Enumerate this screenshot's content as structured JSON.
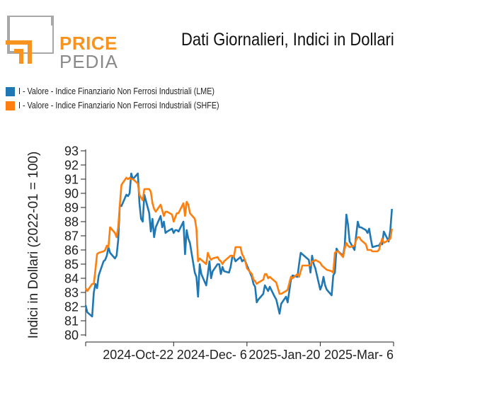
{
  "logo": {
    "word1": "PRICE",
    "word2": "PEDIA"
  },
  "colors": {
    "lme": "#1f77b4",
    "shfe": "#ff7f0e",
    "logo_orange": "#f7931e",
    "logo_grey": "#9a9a9a"
  },
  "chart_data": {
    "type": "line",
    "title": "Dati Giornalieri, Indici in Dollari",
    "ylabel": "Indici in Dollari (2022-01 = 100)",
    "xlabel": "",
    "ylim": [
      80,
      93
    ],
    "yticks": [
      80,
      81,
      82,
      83,
      84,
      85,
      86,
      87,
      88,
      89,
      90,
      91,
      92,
      93
    ],
    "xlim": [
      "2024-08-29",
      "2025-03-06"
    ],
    "xticks": [
      {
        "date": "2024-10-22",
        "label": "2024-Oct-22"
      },
      {
        "date": "2024-12-06",
        "label": "2024-Dec- 6"
      },
      {
        "date": "2025-01-20",
        "label": "2025-Jan-20"
      },
      {
        "date": "2025-03-06",
        "label": "2025-Mar- 6"
      }
    ],
    "legend_position": "top-left",
    "grid": false,
    "series": [
      {
        "name": "I - Valore - Indice Finanziario Non Ferrosi Industriali (LME)",
        "color": "#1f77b4",
        "points": [
          [
            "2024-08-29",
            82.1
          ],
          [
            "2024-08-30",
            81.6
          ],
          [
            "2024-09-02",
            81.3
          ],
          [
            "2024-09-03",
            83.0
          ],
          [
            "2024-09-04",
            83.6
          ],
          [
            "2024-09-05",
            83.3
          ],
          [
            "2024-09-06",
            84.2
          ],
          [
            "2024-09-09",
            85.2
          ],
          [
            "2024-09-10",
            85.3
          ],
          [
            "2024-09-11",
            85.6
          ],
          [
            "2024-09-12",
            86.2
          ],
          [
            "2024-09-13",
            85.8
          ],
          [
            "2024-09-16",
            85.4
          ],
          [
            "2024-09-17",
            85.6
          ],
          [
            "2024-09-18",
            86.7
          ],
          [
            "2024-09-19",
            89.2
          ],
          [
            "2024-09-20",
            89.1
          ],
          [
            "2024-09-23",
            89.9
          ],
          [
            "2024-09-24",
            89.8
          ],
          [
            "2024-09-25",
            90.0
          ],
          [
            "2024-09-26",
            91.4
          ],
          [
            "2024-09-27",
            91.0
          ],
          [
            "2024-09-30",
            91.4
          ],
          [
            "2024-10-01",
            89.3
          ],
          [
            "2024-10-02",
            88.2
          ],
          [
            "2024-10-03",
            88.0
          ],
          [
            "2024-10-04",
            89.9
          ],
          [
            "2024-10-07",
            88.6
          ],
          [
            "2024-10-08",
            87.3
          ],
          [
            "2024-10-09",
            88.2
          ],
          [
            "2024-10-10",
            86.9
          ],
          [
            "2024-10-11",
            87.6
          ],
          [
            "2024-10-14",
            88.4
          ],
          [
            "2024-10-15",
            87.6
          ],
          [
            "2024-10-16",
            88.0
          ],
          [
            "2024-10-17",
            87.2
          ],
          [
            "2024-10-18",
            87.3
          ],
          [
            "2024-10-21",
            87.5
          ],
          [
            "2024-10-22",
            87.2
          ],
          [
            "2024-10-23",
            87.4
          ],
          [
            "2024-10-24",
            87.4
          ],
          [
            "2024-10-25",
            87.3
          ],
          [
            "2024-10-28",
            88.0
          ],
          [
            "2024-10-29",
            85.7
          ],
          [
            "2024-10-30",
            87.4
          ],
          [
            "2024-10-31",
            86.8
          ],
          [
            "2024-11-01",
            86.5
          ],
          [
            "2024-11-04",
            84.4
          ],
          [
            "2024-11-05",
            84.1
          ],
          [
            "2024-11-06",
            82.7
          ],
          [
            "2024-11-07",
            85.0
          ],
          [
            "2024-11-08",
            84.3
          ],
          [
            "2024-11-11",
            83.5
          ],
          [
            "2024-11-12",
            84.3
          ],
          [
            "2024-11-13",
            85.2
          ],
          [
            "2024-11-14",
            84.0
          ],
          [
            "2024-11-15",
            84.5
          ],
          [
            "2024-11-18",
            85.0
          ],
          [
            "2024-11-19",
            85.0
          ],
          [
            "2024-11-20",
            84.3
          ],
          [
            "2024-11-21",
            84.8
          ],
          [
            "2024-11-22",
            84.5
          ],
          [
            "2024-11-25",
            84.4
          ],
          [
            "2024-11-26",
            84.8
          ],
          [
            "2024-11-27",
            85.5
          ],
          [
            "2024-11-28",
            85.5
          ],
          [
            "2024-11-29",
            85.2
          ],
          [
            "2024-12-02",
            85.5
          ],
          [
            "2024-12-03",
            85.2
          ],
          [
            "2024-12-04",
            85.3
          ],
          [
            "2024-12-05",
            85.2
          ],
          [
            "2024-12-06",
            84.9
          ],
          [
            "2024-12-09",
            84.1
          ],
          [
            "2024-12-10",
            83.6
          ],
          [
            "2024-12-11",
            83.4
          ],
          [
            "2024-12-12",
            82.3
          ],
          [
            "2024-12-13",
            82.5
          ],
          [
            "2024-12-16",
            82.9
          ],
          [
            "2024-12-17",
            83.5
          ],
          [
            "2024-12-18",
            83.3
          ],
          [
            "2024-12-19",
            83.1
          ],
          [
            "2024-12-20",
            83.4
          ],
          [
            "2024-12-23",
            82.7
          ],
          [
            "2024-12-24",
            82.5
          ],
          [
            "2024-12-26",
            81.5
          ],
          [
            "2024-12-27",
            82.2
          ],
          [
            "2024-12-30",
            82.7
          ],
          [
            "2024-12-31",
            82.3
          ],
          [
            "2025-01-02",
            83.9
          ],
          [
            "2025-01-03",
            84.2
          ],
          [
            "2025-01-06",
            84.1
          ],
          [
            "2025-01-07",
            85.0
          ],
          [
            "2025-01-08",
            85.8
          ],
          [
            "2025-01-09",
            85.7
          ],
          [
            "2025-01-10",
            85.6
          ],
          [
            "2025-01-13",
            85.3
          ],
          [
            "2025-01-14",
            84.4
          ],
          [
            "2025-01-15",
            85.6
          ],
          [
            "2025-01-16",
            85.0
          ],
          [
            "2025-01-17",
            84.7
          ],
          [
            "2025-01-20",
            83.2
          ],
          [
            "2025-01-21",
            83.5
          ],
          [
            "2025-01-22",
            84.1
          ],
          [
            "2025-01-23",
            83.5
          ],
          [
            "2025-01-24",
            83.2
          ],
          [
            "2025-01-27",
            82.8
          ],
          [
            "2025-01-28",
            84.2
          ],
          [
            "2025-01-29",
            84.4
          ],
          [
            "2025-01-30",
            86.1
          ],
          [
            "2025-01-31",
            85.9
          ],
          [
            "2025-02-03",
            85.6
          ],
          [
            "2025-02-04",
            86.3
          ],
          [
            "2025-02-05",
            88.5
          ],
          [
            "2025-02-06",
            87.8
          ],
          [
            "2025-02-07",
            86.6
          ],
          [
            "2025-02-10",
            86.0
          ],
          [
            "2025-02-11",
            87.0
          ],
          [
            "2025-02-12",
            88.0
          ],
          [
            "2025-02-13",
            87.6
          ],
          [
            "2025-02-14",
            87.6
          ],
          [
            "2025-02-17",
            87.4
          ],
          [
            "2025-02-18",
            87.2
          ],
          [
            "2025-02-19",
            87.5
          ],
          [
            "2025-02-20",
            86.8
          ],
          [
            "2025-02-21",
            86.2
          ],
          [
            "2025-02-24",
            86.3
          ],
          [
            "2025-02-25",
            86.3
          ],
          [
            "2025-02-26",
            86.5
          ],
          [
            "2025-02-27",
            86.4
          ],
          [
            "2025-02-28",
            87.3
          ],
          [
            "2025-03-03",
            86.6
          ],
          [
            "2025-03-04",
            87.4
          ],
          [
            "2025-03-05",
            88.9
          ]
        ]
      },
      {
        "name": "I - Valore - Indice Finanziario Non Ferrosi Industriali (SHFE)",
        "color": "#ff7f0e",
        "points": [
          [
            "2024-08-29",
            83.3
          ],
          [
            "2024-08-30",
            83.1
          ],
          [
            "2024-09-02",
            83.6
          ],
          [
            "2024-09-03",
            83.6
          ],
          [
            "2024-09-04",
            84.6
          ],
          [
            "2024-09-05",
            85.7
          ],
          [
            "2024-09-06",
            85.8
          ],
          [
            "2024-09-09",
            85.9
          ],
          [
            "2024-09-10",
            86.0
          ],
          [
            "2024-09-11",
            86.3
          ],
          [
            "2024-09-12",
            86.2
          ],
          [
            "2024-09-13",
            87.6
          ],
          [
            "2024-09-16",
            87.2
          ],
          [
            "2024-09-17",
            86.9
          ],
          [
            "2024-09-18",
            87.6
          ],
          [
            "2024-09-19",
            89.2
          ],
          [
            "2024-09-20",
            90.6
          ],
          [
            "2024-09-23",
            91.1
          ],
          [
            "2024-09-24",
            91.0
          ],
          [
            "2024-09-25",
            91.1
          ],
          [
            "2024-09-26",
            91.0
          ],
          [
            "2024-09-27",
            91.0
          ],
          [
            "2024-09-30",
            90.7
          ],
          [
            "2024-10-01",
            89.9
          ],
          [
            "2024-10-02",
            89.7
          ],
          [
            "2024-10-03",
            89.5
          ],
          [
            "2024-10-04",
            90.3
          ],
          [
            "2024-10-07",
            90.3
          ],
          [
            "2024-10-08",
            90.1
          ],
          [
            "2024-10-09",
            89.3
          ],
          [
            "2024-10-10",
            88.9
          ],
          [
            "2024-10-11",
            88.7
          ],
          [
            "2024-10-14",
            89.2
          ],
          [
            "2024-10-15",
            88.8
          ],
          [
            "2024-10-16",
            88.4
          ],
          [
            "2024-10-17",
            88.7
          ],
          [
            "2024-10-18",
            88.7
          ],
          [
            "2024-10-21",
            88.5
          ],
          [
            "2024-10-22",
            88.0
          ],
          [
            "2024-10-23",
            88.3
          ],
          [
            "2024-10-24",
            88.6
          ],
          [
            "2024-10-25",
            88.6
          ],
          [
            "2024-10-28",
            89.3
          ],
          [
            "2024-10-29",
            88.4
          ],
          [
            "2024-10-30",
            89.4
          ],
          [
            "2024-10-31",
            89.2
          ],
          [
            "2024-11-01",
            88.6
          ],
          [
            "2024-11-04",
            88.2
          ],
          [
            "2024-11-05",
            87.5
          ],
          [
            "2024-11-06",
            85.2
          ],
          [
            "2024-11-07",
            85.4
          ],
          [
            "2024-11-08",
            85.3
          ],
          [
            "2024-11-11",
            85.0
          ],
          [
            "2024-11-12",
            85.8
          ],
          [
            "2024-11-13",
            85.5
          ],
          [
            "2024-11-14",
            85.3
          ],
          [
            "2024-11-15",
            85.4
          ],
          [
            "2024-11-18",
            85.5
          ],
          [
            "2024-11-19",
            85.3
          ],
          [
            "2024-11-20",
            85.2
          ],
          [
            "2024-11-21",
            85.0
          ],
          [
            "2024-11-22",
            85.2
          ],
          [
            "2024-11-25",
            85.5
          ],
          [
            "2024-11-26",
            85.6
          ],
          [
            "2024-11-27",
            85.6
          ],
          [
            "2024-11-28",
            85.5
          ],
          [
            "2024-11-29",
            86.2
          ],
          [
            "2024-12-02",
            86.2
          ],
          [
            "2024-12-03",
            85.7
          ],
          [
            "2024-12-04",
            85.5
          ],
          [
            "2024-12-05",
            85.2
          ],
          [
            "2024-12-06",
            84.7
          ],
          [
            "2024-12-09",
            84.3
          ],
          [
            "2024-12-10",
            83.9
          ],
          [
            "2024-12-11",
            83.8
          ],
          [
            "2024-12-12",
            83.6
          ],
          [
            "2024-12-13",
            83.7
          ],
          [
            "2024-12-16",
            83.9
          ],
          [
            "2024-12-17",
            84.3
          ],
          [
            "2024-12-18",
            84.3
          ],
          [
            "2024-12-19",
            84.0
          ],
          [
            "2024-12-20",
            84.1
          ],
          [
            "2024-12-23",
            83.8
          ],
          [
            "2024-12-24",
            83.7
          ],
          [
            "2024-12-26",
            82.9
          ],
          [
            "2024-12-27",
            82.9
          ],
          [
            "2024-12-30",
            83.1
          ],
          [
            "2024-12-31",
            83.2
          ],
          [
            "2025-01-02",
            84.1
          ],
          [
            "2025-01-03",
            84.0
          ],
          [
            "2025-01-06",
            84.3
          ],
          [
            "2025-01-07",
            84.1
          ],
          [
            "2025-01-08",
            84.5
          ],
          [
            "2025-01-09",
            84.9
          ],
          [
            "2025-01-10",
            84.9
          ],
          [
            "2025-01-13",
            84.9
          ],
          [
            "2025-01-14",
            84.9
          ],
          [
            "2025-01-15",
            85.2
          ],
          [
            "2025-01-16",
            85.2
          ],
          [
            "2025-01-17",
            85.3
          ],
          [
            "2025-01-20",
            85.1
          ],
          [
            "2025-01-21",
            84.9
          ],
          [
            "2025-01-22",
            84.8
          ],
          [
            "2025-01-23",
            84.7
          ],
          [
            "2025-01-24",
            84.6
          ],
          [
            "2025-01-27",
            84.5
          ],
          [
            "2025-01-28",
            84.4
          ],
          [
            "2025-01-29",
            85.8
          ],
          [
            "2025-01-30",
            85.9
          ],
          [
            "2025-01-31",
            85.9
          ],
          [
            "2025-02-03",
            85.5
          ],
          [
            "2025-02-04",
            86.1
          ],
          [
            "2025-02-05",
            86.5
          ],
          [
            "2025-02-06",
            86.3
          ],
          [
            "2025-02-07",
            86.2
          ],
          [
            "2025-02-10",
            86.3
          ],
          [
            "2025-02-11",
            86.7
          ],
          [
            "2025-02-12",
            86.9
          ],
          [
            "2025-02-13",
            86.9
          ],
          [
            "2025-02-14",
            86.7
          ],
          [
            "2025-02-17",
            86.4
          ],
          [
            "2025-02-18",
            86.0
          ],
          [
            "2025-02-19",
            86.0
          ],
          [
            "2025-02-20",
            86.0
          ],
          [
            "2025-02-21",
            85.9
          ],
          [
            "2025-02-24",
            85.9
          ],
          [
            "2025-02-25",
            86.0
          ],
          [
            "2025-02-26",
            86.4
          ],
          [
            "2025-02-27",
            86.8
          ],
          [
            "2025-02-28",
            86.5
          ],
          [
            "2025-03-03",
            86.7
          ],
          [
            "2025-03-04",
            86.8
          ],
          [
            "2025-03-05",
            87.5
          ]
        ]
      }
    ]
  }
}
